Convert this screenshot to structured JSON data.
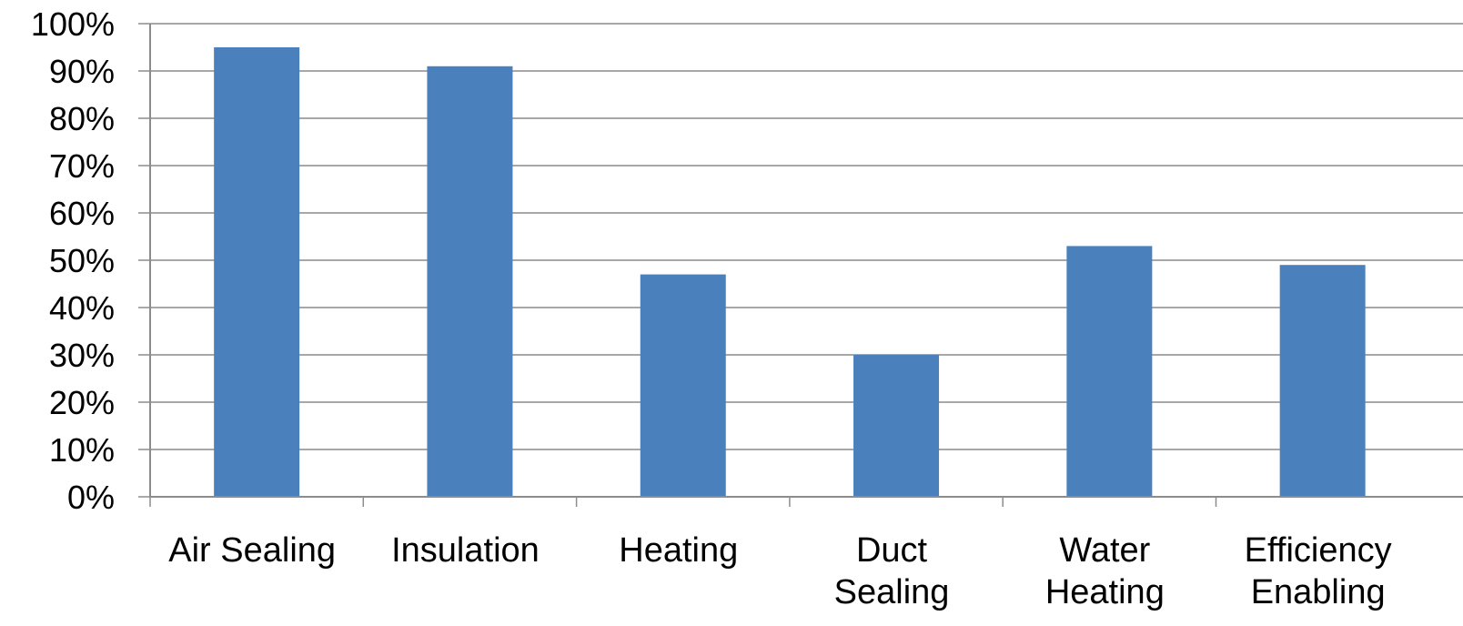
{
  "chart_data": {
    "type": "bar",
    "categories": [
      [
        "Air Sealing"
      ],
      [
        "Insulation"
      ],
      [
        "Heating"
      ],
      [
        "Duct",
        "Sealing"
      ],
      [
        "Water",
        "Heating"
      ],
      [
        "Efficiency",
        "Enabling"
      ]
    ],
    "values": [
      95,
      91,
      47,
      30,
      53,
      49
    ],
    "ylim": [
      0,
      100
    ],
    "yticks": [
      "0%",
      "10%",
      "20%",
      "30%",
      "40%",
      "50%",
      "60%",
      "70%",
      "80%",
      "90%",
      "100%"
    ],
    "grid": true,
    "bar_color": "#4a81bd",
    "grid_color": "#8c8c8c",
    "title": "",
    "xlabel": "",
    "ylabel": ""
  }
}
